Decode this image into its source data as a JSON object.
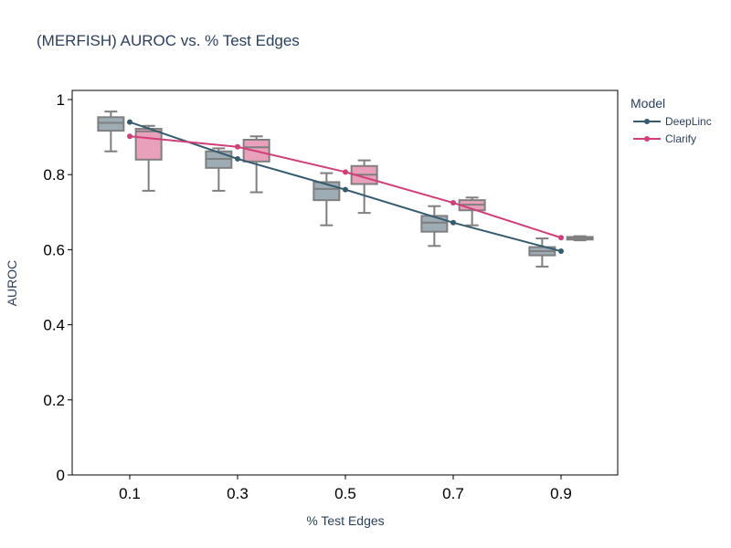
{
  "chart_data": {
    "type": "box",
    "title": "(MERFISH) AUROC vs. % Test Edges",
    "xlabel": "% Test Edges",
    "ylabel": "AUROC",
    "x": [
      0.1,
      0.3,
      0.5,
      0.7,
      0.9
    ],
    "x_tick_labels": [
      "0.1",
      "0.3",
      "0.5",
      "0.7",
      "0.9"
    ],
    "ylim": [
      0,
      1
    ],
    "y_ticks": [
      0,
      0.2,
      0.4,
      0.6,
      0.8,
      1
    ],
    "y_tick_labels": [
      "0",
      "0.2",
      "0.4",
      "0.6",
      "0.8",
      "1"
    ],
    "grid": false,
    "legend": {
      "title": "Model",
      "position": "right"
    },
    "series": [
      {
        "name": "DeepLinc",
        "color": "#355c6e",
        "box_fill": "#9eacb6",
        "box_offset": -0.035,
        "mean_line": [
          0.94,
          0.842,
          0.76,
          0.672,
          0.596
        ],
        "boxes": [
          {
            "min": 0.862,
            "q1": 0.917,
            "median": 0.938,
            "q3": 0.953,
            "max": 0.968
          },
          {
            "min": 0.757,
            "q1": 0.818,
            "median": 0.842,
            "q3": 0.862,
            "max": 0.87
          },
          {
            "min": 0.665,
            "q1": 0.732,
            "median": 0.762,
            "q3": 0.78,
            "max": 0.804
          },
          {
            "min": 0.61,
            "q1": 0.648,
            "median": 0.672,
            "q3": 0.69,
            "max": 0.716
          },
          {
            "min": 0.555,
            "q1": 0.585,
            "median": 0.596,
            "q3": 0.607,
            "max": 0.63
          }
        ]
      },
      {
        "name": "Clarify",
        "color": "#d13f7a",
        "box_fill": "#e9a1bb",
        "box_offset": 0.035,
        "mean_line": [
          0.902,
          0.874,
          0.807,
          0.725,
          0.632
        ],
        "boxes": [
          {
            "min": 0.757,
            "q1": 0.84,
            "median": 0.915,
            "q3": 0.922,
            "max": 0.93
          },
          {
            "min": 0.753,
            "q1": 0.835,
            "median": 0.873,
            "q3": 0.893,
            "max": 0.902
          },
          {
            "min": 0.698,
            "q1": 0.775,
            "median": 0.8,
            "q3": 0.823,
            "max": 0.838
          },
          {
            "min": 0.665,
            "q1": 0.705,
            "median": 0.72,
            "q3": 0.732,
            "max": 0.739
          },
          {
            "min": 0.625,
            "q1": 0.627,
            "median": 0.63,
            "q3": 0.634,
            "max": 0.636
          }
        ]
      }
    ]
  }
}
